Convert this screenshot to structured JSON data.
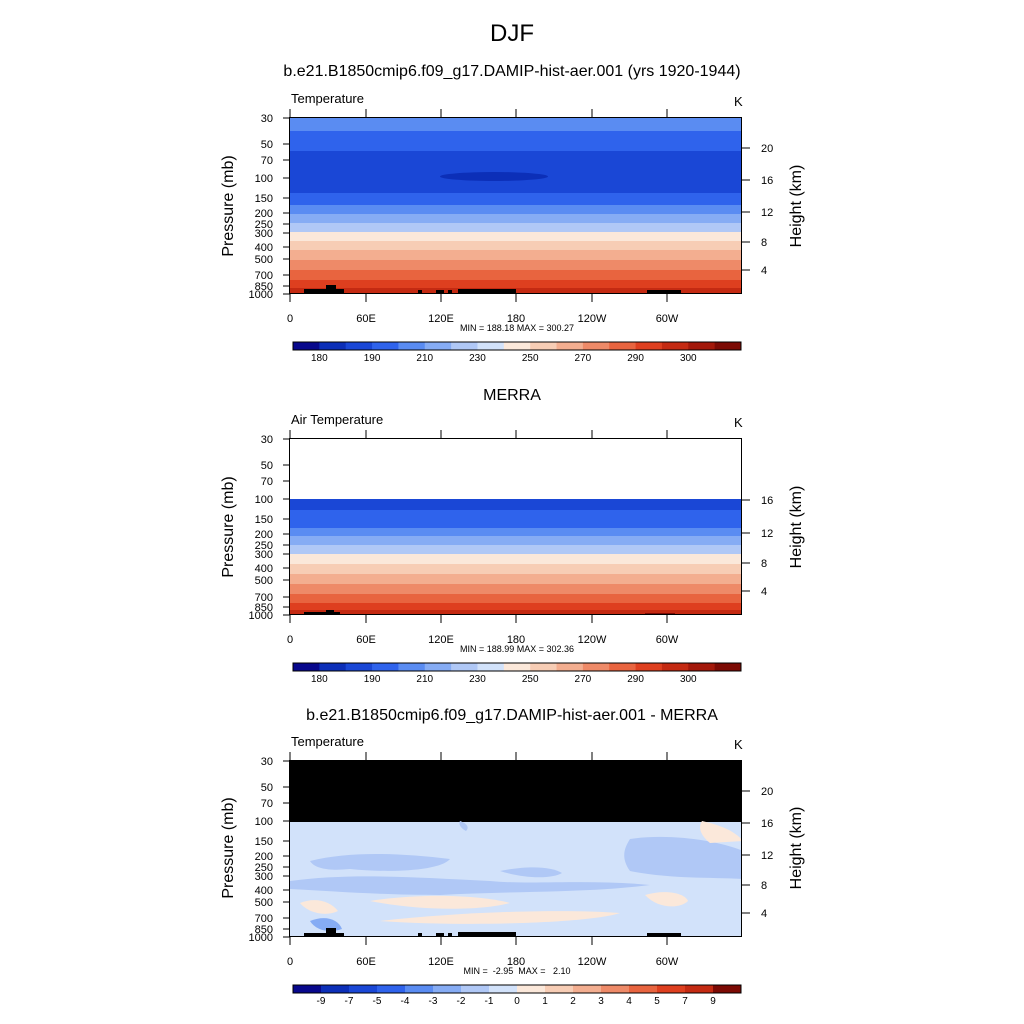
{
  "title": "DJF",
  "panels": [
    {
      "title": "b.e21.B1850cmip6.f09_g17.DAMIP-hist-aer.001 (yrs 1920-1944)",
      "left_label": "Temperature",
      "right_label": "K",
      "stats": "MIN = 188.18  MAX = 300.27",
      "ylabel": "Pressure (mb)",
      "ylabel_right": "Height (km)"
    },
    {
      "title": "MERRA",
      "left_label": "Air Temperature",
      "right_label": "K",
      "stats": "MIN = 188.99  MAX = 302.36",
      "ylabel": "Pressure (mb)",
      "ylabel_right": "Height (km)"
    },
    {
      "title": "b.e21.B1850cmip6.f09_g17.DAMIP-hist-aer.001 - MERRA",
      "left_label": "Temperature",
      "right_label": "K",
      "stats": "MIN =  -2.95  MAX =   2.10",
      "ylabel": "Pressure (mb)",
      "ylabel_right": "Height (km)"
    }
  ],
  "chart_data": {
    "type": "heatmap",
    "xticks": [
      "0",
      "60E",
      "120E",
      "180",
      "120W",
      "60W"
    ],
    "pressure_ticks": [
      "30",
      "50",
      "70",
      "100",
      "150",
      "200",
      "250",
      "300",
      "400",
      "500",
      "700",
      "850",
      "1000"
    ],
    "height_ticks_full": [
      "20",
      "16",
      "12",
      "8",
      "4"
    ],
    "height_ticks_merra": [
      "16",
      "12",
      "8",
      "4"
    ],
    "colorbar_abs": {
      "labels": [
        "180",
        "190",
        "210",
        "230",
        "250",
        "270",
        "290",
        "300"
      ],
      "colors": [
        "#08088c",
        "#0c2fb8",
        "#1a47d6",
        "#2f63ec",
        "#5a8cf2",
        "#86acf4",
        "#b0c8f6",
        "#d2e2fa",
        "#fbe8da",
        "#f7cdb5",
        "#f3ae90",
        "#ee8a68",
        "#e8643f",
        "#de3f1f",
        "#c42a12",
        "#a3180a",
        "#7c0a04"
      ]
    },
    "colorbar_diff": {
      "labels": [
        "-9",
        "-7",
        "-5",
        "-4",
        "-3",
        "-2",
        "-1",
        "0",
        "1",
        "2",
        "3",
        "4",
        "5",
        "7",
        "9"
      ],
      "colors": [
        "#08088c",
        "#0c2fb8",
        "#1a47d6",
        "#2f63ec",
        "#5a8cf2",
        "#86acf4",
        "#b0c8f6",
        "#d2e2fa",
        "#fbe8da",
        "#f7cdb5",
        "#f3ae90",
        "#ee8a68",
        "#e8643f",
        "#de3f1f",
        "#c42a12",
        "#7c0a04"
      ]
    }
  }
}
